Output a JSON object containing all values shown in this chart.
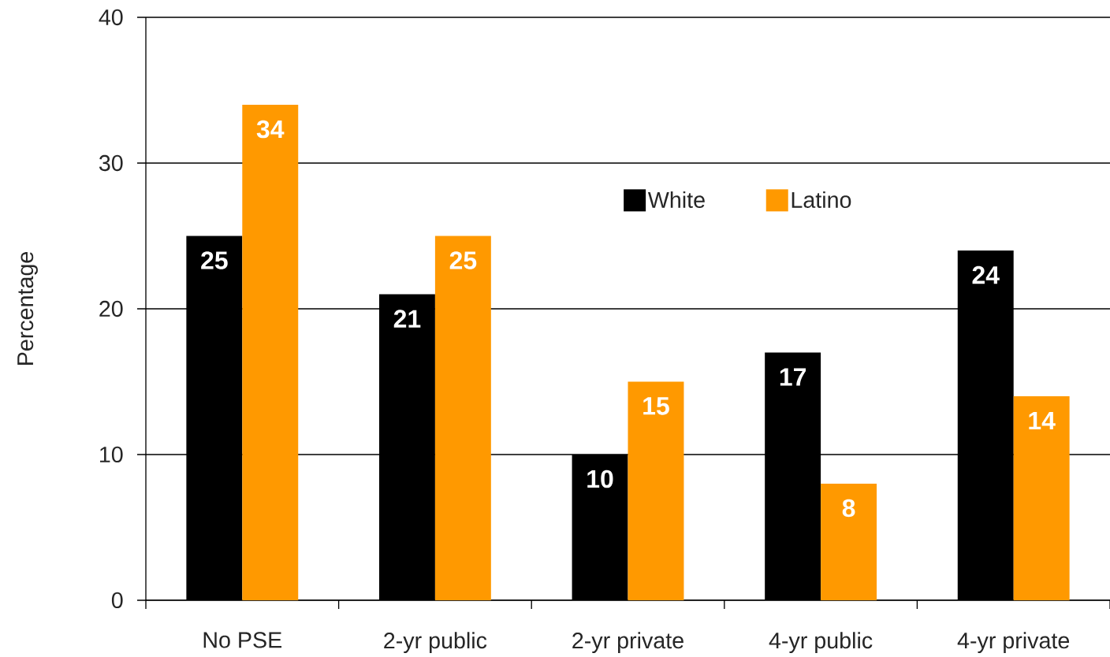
{
  "chart_data": {
    "type": "bar",
    "ylabel": "Percentage",
    "categories": [
      "No PSE",
      "2-yr public",
      "2-yr private",
      "4-yr public",
      "4-yr private"
    ],
    "series": [
      {
        "name": "White",
        "color": "#000000",
        "values": [
          25,
          21,
          10,
          17,
          24
        ]
      },
      {
        "name": "Latino",
        "color": "#ff9900",
        "values": [
          34,
          25,
          15,
          8,
          14
        ]
      }
    ],
    "ylim": [
      0,
      40
    ],
    "yticks": [
      0,
      10,
      20,
      30,
      40
    ],
    "grid": "y",
    "legend": "top",
    "data_labels": true
  }
}
